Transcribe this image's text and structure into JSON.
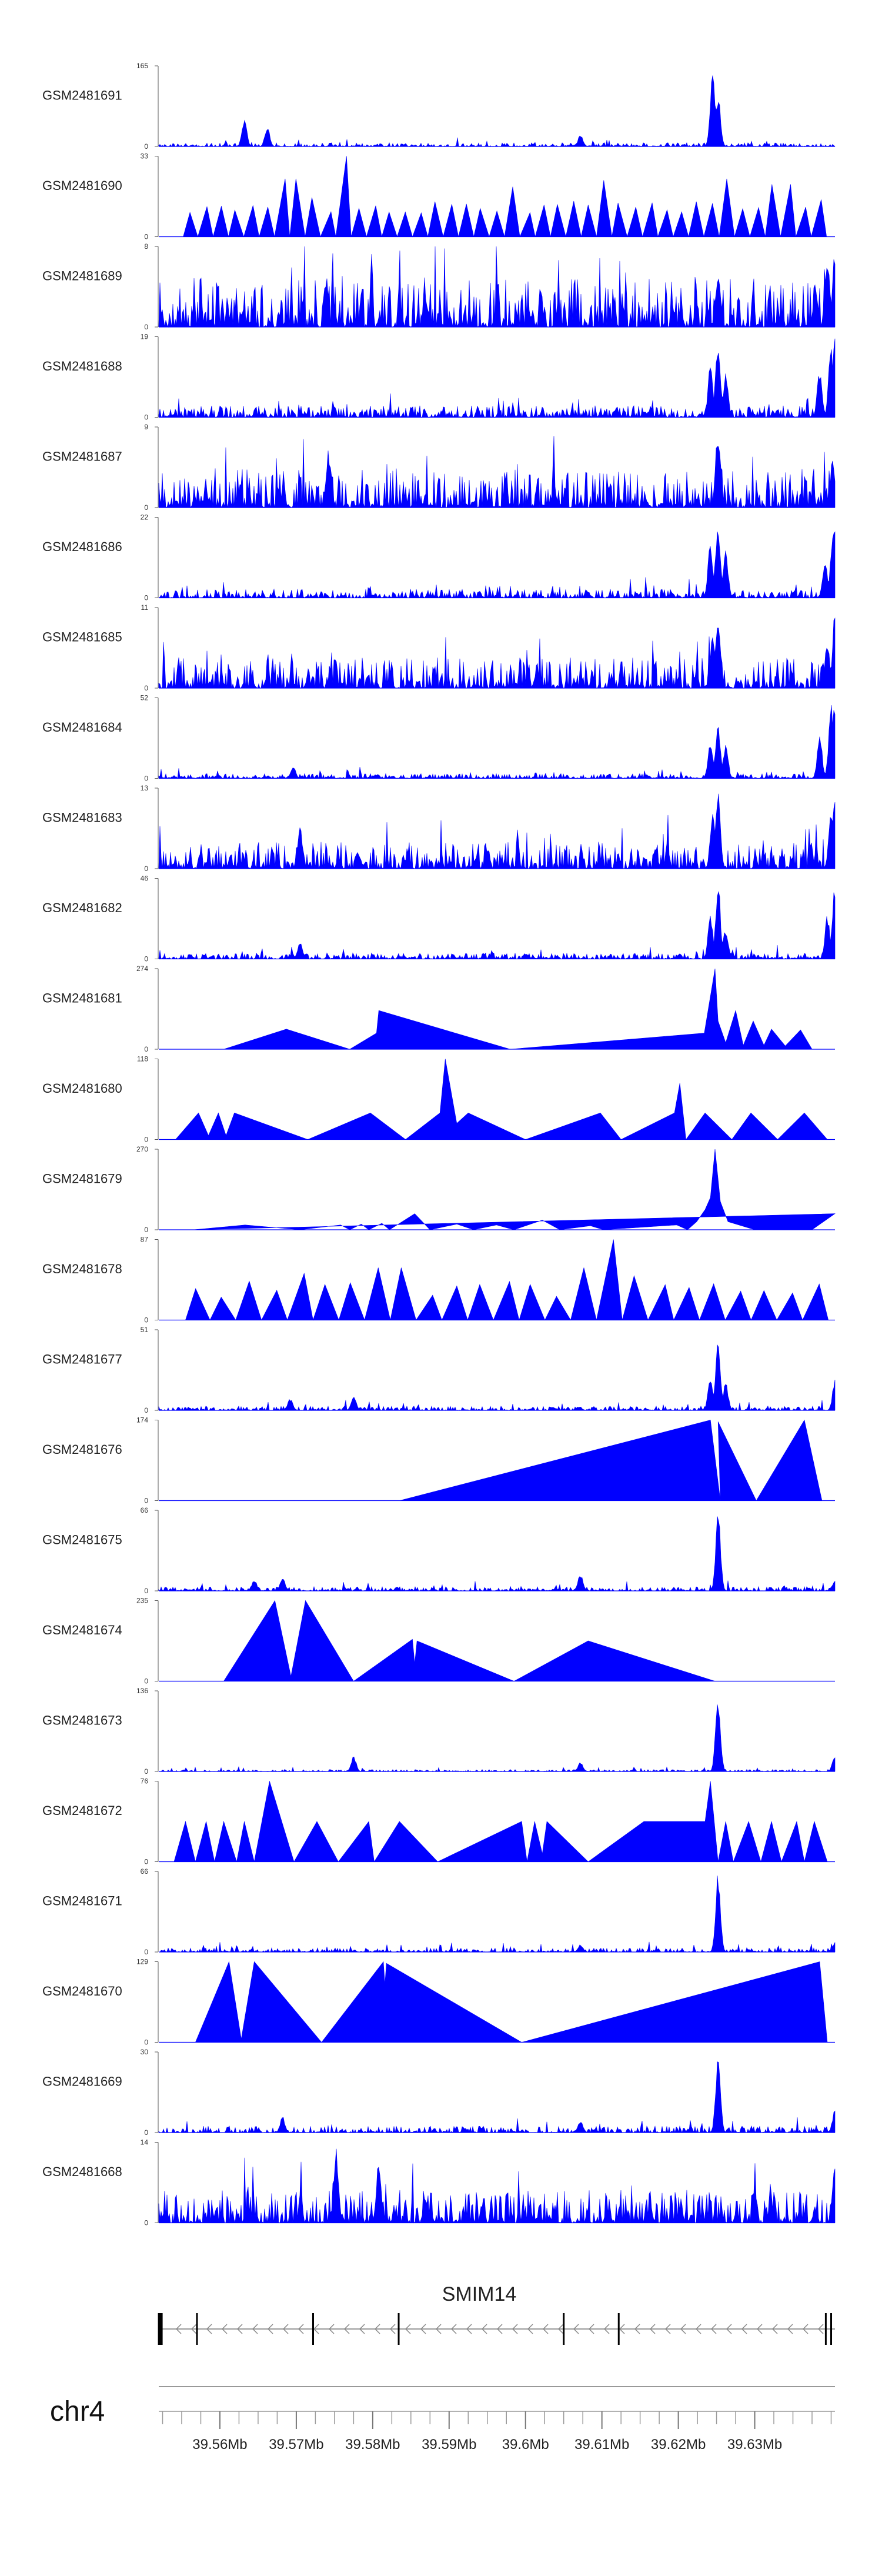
{
  "chart_data": {
    "type": "area",
    "title": "",
    "chromosome": "chr4",
    "region_mb": [
      39.552,
      39.6405
    ],
    "accent_color": "#0000ff",
    "x_ticks": [
      "39.56Mb",
      "39.57Mb",
      "39.58Mb",
      "39.59Mb",
      "39.6Mb",
      "39.61Mb",
      "39.62Mb",
      "39.63Mb"
    ],
    "x_tick_values": [
      39.56,
      39.57,
      39.58,
      39.59,
      39.6,
      39.61,
      39.62,
      39.63
    ],
    "gene": {
      "name": "SMIM14",
      "strand": "-",
      "start_mb": 39.552,
      "end_mb": 39.6405,
      "exons_mb": [
        39.5522,
        39.557,
        39.5722,
        39.5834,
        39.605,
        39.6122,
        39.6393,
        39.64
      ]
    },
    "tracks": [
      {
        "name": "GSM2481691",
        "ymax": 165,
        "style": "signal",
        "base": 0.035,
        "noise": 0.3,
        "density": 0.95,
        "peaks": [
          [
            39.5632,
            0.35
          ],
          [
            39.5662,
            0.25
          ],
          [
            39.6072,
            0.15
          ],
          [
            39.6245,
            1.0
          ],
          [
            39.6252,
            0.65
          ]
        ]
      },
      {
        "name": "GSM2481690",
        "ymax": 33,
        "style": "triangles",
        "start": 39.5552,
        "end": 39.6395,
        "count": 42,
        "peaks": [
          [
            39.5766,
            1.0
          ],
          [
            39.569,
            0.72
          ],
          [
            39.6258,
            0.72
          ],
          [
            39.6105,
            0.7
          ],
          [
            39.5983,
            0.62
          ],
          [
            39.6335,
            0.65
          ]
        ]
      },
      {
        "name": "GSM2481689",
        "ymax": 8,
        "style": "signal",
        "base": 0.32,
        "noise": 0.9,
        "density": 1.0,
        "peaks": [
          [
            39.6252,
            0.7
          ],
          [
            39.6395,
            0.85
          ],
          [
            39.6405,
            1.0
          ]
        ]
      },
      {
        "name": "GSM2481688",
        "ymax": 19,
        "style": "signal",
        "base": 0.09,
        "noise": 0.6,
        "density": 1.0,
        "peaks": [
          [
            39.6242,
            0.65
          ],
          [
            39.6252,
            1.0
          ],
          [
            39.6262,
            0.55
          ],
          [
            39.6385,
            0.6
          ],
          [
            39.64,
            0.95
          ],
          [
            39.6405,
            1.0
          ]
        ]
      },
      {
        "name": "GSM2481687",
        "ymax": 9,
        "style": "signal",
        "base": 0.25,
        "noise": 0.95,
        "density": 1.0,
        "peaks": [
          [
            39.5742,
            0.72
          ],
          [
            39.6252,
            1.0
          ],
          [
            39.6402,
            0.6
          ]
        ]
      },
      {
        "name": "GSM2481686",
        "ymax": 22,
        "style": "signal",
        "base": 0.07,
        "noise": 0.55,
        "density": 1.0,
        "peaks": [
          [
            39.6242,
            0.7
          ],
          [
            39.6252,
            1.0
          ],
          [
            39.6262,
            0.6
          ],
          [
            39.6392,
            0.45
          ],
          [
            39.6402,
            0.8
          ],
          [
            39.6405,
            0.9
          ]
        ]
      },
      {
        "name": "GSM2481685",
        "ymax": 11,
        "style": "signal",
        "base": 0.2,
        "noise": 0.9,
        "density": 1.0,
        "peaks": [
          [
            39.6245,
            0.75
          ],
          [
            39.6252,
            0.95
          ],
          [
            39.6395,
            0.6
          ],
          [
            39.6405,
            0.95
          ]
        ]
      },
      {
        "name": "GSM2481684",
        "ymax": 52,
        "style": "signal",
        "base": 0.04,
        "noise": 0.5,
        "density": 1.0,
        "peaks": [
          [
            39.5696,
            0.15
          ],
          [
            39.6242,
            0.5
          ],
          [
            39.6252,
            0.72
          ],
          [
            39.6262,
            0.45
          ],
          [
            39.6385,
            0.55
          ],
          [
            39.64,
            0.95
          ],
          [
            39.6405,
            1.0
          ]
        ]
      },
      {
        "name": "GSM2481683",
        "ymax": 13,
        "style": "signal",
        "base": 0.18,
        "noise": 0.85,
        "density": 1.0,
        "peaks": [
          [
            39.5705,
            0.55
          ],
          [
            39.6245,
            0.7
          ],
          [
            39.6252,
            0.95
          ],
          [
            39.64,
            0.75
          ],
          [
            39.6405,
            1.0
          ]
        ]
      },
      {
        "name": "GSM2481682",
        "ymax": 46,
        "style": "signal",
        "base": 0.05,
        "noise": 0.5,
        "density": 1.0,
        "peaks": [
          [
            39.5705,
            0.22
          ],
          [
            39.6242,
            0.55
          ],
          [
            39.6252,
            0.98
          ],
          [
            39.6262,
            0.4
          ],
          [
            39.6395,
            0.55
          ],
          [
            39.6405,
            1.0
          ]
        ]
      },
      {
        "name": "GSM2481681",
        "ymax": 274,
        "style": "sparse",
        "points": [
          [
            39.5605,
            0.0
          ],
          [
            39.5687,
            0.25
          ],
          [
            39.577,
            0.0
          ],
          [
            39.5805,
            0.2
          ],
          [
            39.5808,
            0.48
          ],
          [
            39.598,
            0.0
          ],
          [
            39.6234,
            0.2
          ],
          [
            39.6248,
            1.0
          ],
          [
            39.6252,
            0.35
          ],
          [
            39.6262,
            0.08
          ],
          [
            39.6275,
            0.48
          ],
          [
            39.6285,
            0.05
          ],
          [
            39.6298,
            0.35
          ],
          [
            39.6312,
            0.05
          ],
          [
            39.6322,
            0.25
          ],
          [
            39.634,
            0.04
          ],
          [
            39.636,
            0.24
          ],
          [
            39.6375,
            0.0
          ]
        ]
      },
      {
        "name": "GSM2481680",
        "ymax": 118,
        "style": "sparse",
        "points": [
          [
            39.5542,
            0.0
          ],
          [
            39.5572,
            0.33
          ],
          [
            39.5585,
            0.05
          ],
          [
            39.5598,
            0.33
          ],
          [
            39.5608,
            0.05
          ],
          [
            39.5619,
            0.33
          ],
          [
            39.5715,
            0.0
          ],
          [
            39.5797,
            0.33
          ],
          [
            39.5843,
            0.0
          ],
          [
            39.5888,
            0.33
          ],
          [
            39.5895,
            1.0
          ],
          [
            39.591,
            0.2
          ],
          [
            39.5925,
            0.33
          ],
          [
            39.6,
            0.0
          ],
          [
            39.6098,
            0.33
          ],
          [
            39.6125,
            0.0
          ],
          [
            39.6195,
            0.33
          ],
          [
            39.6202,
            0.7
          ],
          [
            39.621,
            0.0
          ],
          [
            39.6235,
            0.33
          ],
          [
            39.627,
            0.0
          ],
          [
            39.6295,
            0.33
          ],
          [
            39.633,
            0.0
          ],
          [
            39.6365,
            0.33
          ],
          [
            39.6395,
            0.0
          ]
        ]
      },
      {
        "name": "GSM2481679",
        "ymax": 270,
        "style": "sparse",
        "points": [
          [
            39.5565,
            0.0
          ],
          [
            39.5633,
            0.06
          ],
          [
            39.5705,
            0.0
          ],
          [
            39.5758,
            0.06
          ],
          [
            39.577,
            0.0
          ],
          [
            39.5785,
            0.07
          ],
          [
            39.5795,
            0.0
          ],
          [
            39.5812,
            0.08
          ],
          [
            39.5822,
            0.0
          ],
          [
            39.5855,
            0.2
          ],
          [
            39.5875,
            0.0
          ],
          [
            39.591,
            0.07
          ],
          [
            39.5932,
            0.0
          ],
          [
            39.5962,
            0.06
          ],
          [
            39.5985,
            0.0
          ],
          [
            39.6022,
            0.12
          ],
          [
            39.6045,
            0.0
          ],
          [
            39.6085,
            0.05
          ],
          [
            39.6102,
            0.0
          ],
          [
            39.6198,
            0.06
          ],
          [
            39.6212,
            0.0
          ],
          [
            39.6224,
            0.1
          ],
          [
            39.6235,
            0.25
          ],
          [
            39.6242,
            0.4
          ],
          [
            39.6248,
            1.0
          ],
          [
            39.6255,
            0.35
          ],
          [
            39.6265,
            0.1
          ],
          [
            39.63,
            0.0
          ],
          [
            39.6375,
            0.0
          ],
          [
            39.6405,
            0.2
          ]
        ]
      },
      {
        "name": "GSM2481678",
        "ymax": 87,
        "style": "triangles",
        "start": 39.5555,
        "end": 39.6398,
        "count": 25,
        "peaks": [
          [
            39.5712,
            0.58
          ],
          [
            39.5825,
            0.65
          ],
          [
            39.6075,
            0.65
          ],
          [
            39.6098,
            1.0
          ],
          [
            39.6132,
            0.55
          ]
        ]
      },
      {
        "name": "GSM2481677",
        "ymax": 51,
        "style": "signal",
        "base": 0.04,
        "noise": 0.3,
        "density": 0.95,
        "peaks": [
          [
            39.5692,
            0.15
          ],
          [
            39.5775,
            0.2
          ],
          [
            39.6242,
            0.42
          ],
          [
            39.6252,
            0.95
          ],
          [
            39.6262,
            0.35
          ],
          [
            39.6405,
            0.38
          ]
        ]
      },
      {
        "name": "GSM2481676",
        "ymax": 174,
        "style": "sparse",
        "points": [
          [
            39.5835,
            0.0
          ],
          [
            39.6242,
            1.0
          ],
          [
            39.6255,
            0.0
          ],
          [
            39.6252,
            0.98
          ],
          [
            39.6302,
            0.0
          ],
          [
            39.6365,
            1.0
          ],
          [
            39.6388,
            0.0
          ]
        ]
      },
      {
        "name": "GSM2481675",
        "ymax": 66,
        "style": "signal",
        "base": 0.04,
        "noise": 0.3,
        "density": 0.95,
        "peaks": [
          [
            39.5645,
            0.15
          ],
          [
            39.5682,
            0.18
          ],
          [
            39.6072,
            0.22
          ],
          [
            39.6252,
            1.0
          ],
          [
            39.6405,
            0.15
          ]
        ]
      },
      {
        "name": "GSM2481674",
        "ymax": 235,
        "style": "sparse",
        "points": [
          [
            39.5605,
            0.0
          ],
          [
            39.5672,
            1.0
          ],
          [
            39.5693,
            0.06
          ],
          [
            39.5712,
            1.0
          ],
          [
            39.5775,
            0.0
          ],
          [
            39.5852,
            0.52
          ],
          [
            39.5855,
            0.22
          ],
          [
            39.5858,
            0.5
          ],
          [
            39.5985,
            0.0
          ],
          [
            39.6082,
            0.5
          ],
          [
            39.6248,
            0.0
          ]
        ]
      },
      {
        "name": "GSM2481673",
        "ymax": 136,
        "style": "signal",
        "base": 0.02,
        "noise": 0.25,
        "density": 0.9,
        "peaks": [
          [
            39.5775,
            0.2
          ],
          [
            39.6072,
            0.12
          ],
          [
            39.6252,
            1.0
          ],
          [
            39.6405,
            0.22
          ]
        ]
      },
      {
        "name": "GSM2481672",
        "ymax": 76,
        "style": "sparse",
        "points": [
          [
            39.554,
            0.0
          ],
          [
            39.5555,
            0.5
          ],
          [
            39.5568,
            0.0
          ],
          [
            39.5582,
            0.5
          ],
          [
            39.5593,
            0.0
          ],
          [
            39.5605,
            0.5
          ],
          [
            39.5622,
            0.0
          ],
          [
            39.5632,
            0.5
          ],
          [
            39.5645,
            0.0
          ],
          [
            39.5665,
            1.0
          ],
          [
            39.5697,
            0.0
          ],
          [
            39.5727,
            0.5
          ],
          [
            39.5755,
            0.0
          ],
          [
            39.5795,
            0.5
          ],
          [
            39.5802,
            0.0
          ],
          [
            39.5835,
            0.5
          ],
          [
            39.5885,
            0.0
          ],
          [
            39.5995,
            0.5
          ],
          [
            39.6002,
            0.0
          ],
          [
            39.6012,
            0.5
          ],
          [
            39.6022,
            0.1
          ],
          [
            39.6028,
            0.5
          ],
          [
            39.6082,
            0.0
          ],
          [
            39.6155,
            0.5
          ],
          [
            39.6235,
            0.5
          ],
          [
            39.6242,
            1.0
          ],
          [
            39.6252,
            0.0
          ],
          [
            39.6262,
            0.5
          ],
          [
            39.6272,
            0.0
          ],
          [
            39.6292,
            0.5
          ],
          [
            39.6308,
            0.0
          ],
          [
            39.6322,
            0.5
          ],
          [
            39.6335,
            0.0
          ],
          [
            39.6355,
            0.5
          ],
          [
            39.6365,
            0.0
          ],
          [
            39.6378,
            0.5
          ],
          [
            39.6395,
            0.0
          ]
        ]
      },
      {
        "name": "GSM2481671",
        "ymax": 66,
        "style": "signal",
        "base": 0.04,
        "noise": 0.3,
        "density": 0.95,
        "peaks": [
          [
            39.6072,
            0.1
          ],
          [
            39.6252,
            1.0
          ],
          [
            39.6405,
            0.12
          ]
        ]
      },
      {
        "name": "GSM2481670",
        "ymax": 129,
        "style": "sparse",
        "points": [
          [
            39.5568,
            0.0
          ],
          [
            39.5612,
            1.0
          ],
          [
            39.5628,
            0.04
          ],
          [
            39.5645,
            1.0
          ],
          [
            39.5733,
            0.0
          ],
          [
            39.5814,
            1.0
          ],
          [
            39.5816,
            0.72
          ],
          [
            39.5818,
            0.98
          ],
          [
            39.5995,
            0.0
          ],
          [
            39.6385,
            1.0
          ],
          [
            39.6395,
            0.0
          ]
        ]
      },
      {
        "name": "GSM2481669",
        "ymax": 30,
        "style": "signal",
        "base": 0.06,
        "noise": 0.35,
        "density": 0.95,
        "peaks": [
          [
            39.5682,
            0.2
          ],
          [
            39.6072,
            0.15
          ],
          [
            39.6252,
            1.0
          ],
          [
            39.6405,
            0.3
          ]
        ]
      },
      {
        "name": "GSM2481668",
        "ymax": 14,
        "style": "signal",
        "base": 0.22,
        "noise": 0.85,
        "density": 1.0,
        "peaks": [
          [
            39.5752,
            0.95
          ],
          [
            39.5808,
            0.78
          ],
          [
            39.6405,
            0.82
          ]
        ]
      }
    ]
  }
}
